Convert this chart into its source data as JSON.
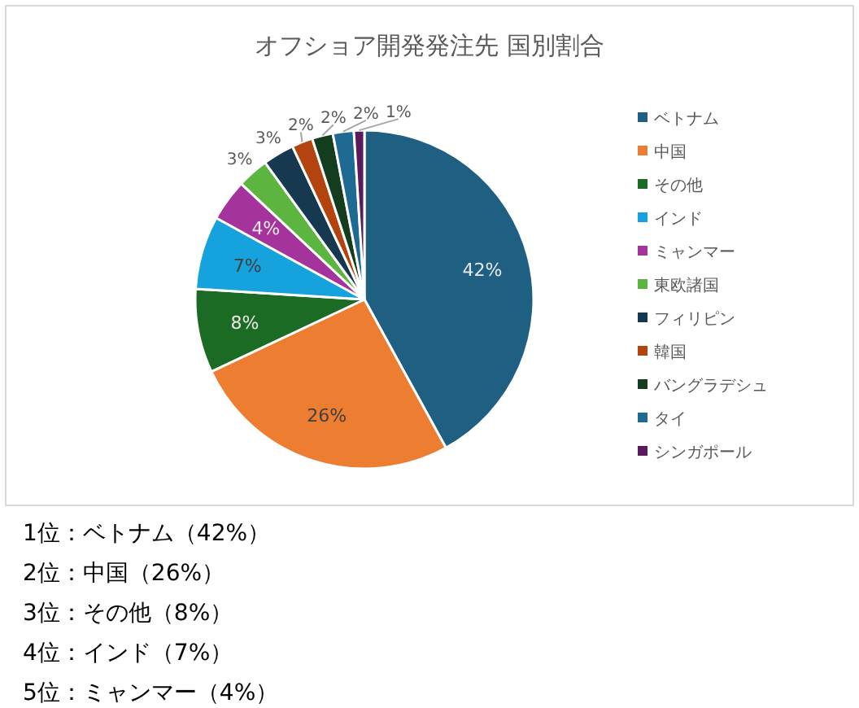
{
  "chart_data": {
    "type": "pie",
    "title": "オフショア開発発注先 国別割合",
    "categories": [
      "ベトナム",
      "中国",
      "その他",
      "インド",
      "ミャンマー",
      "東欧諸国",
      "フィリピン",
      "韓国",
      "バングラデシュ",
      "タイ",
      "シンガポール"
    ],
    "values": [
      42,
      26,
      8,
      7,
      4,
      3,
      3,
      2,
      2,
      2,
      1
    ],
    "value_labels": [
      "42%",
      "26%",
      "8%",
      "7%",
      "4%",
      "3%",
      "3%",
      "2%",
      "2%",
      "2%",
      "1%"
    ],
    "colors": [
      "#1f5f82",
      "#ed7d31",
      "#1b6b25",
      "#16a2dc",
      "#a4339b",
      "#5cb53e",
      "#16394f",
      "#b3440f",
      "#133d1e",
      "#1e6a92",
      "#5a1a5c"
    ],
    "legend": "right",
    "annotations": [
      "1位：ベトナム（42%）",
      "2位：中国（26%）",
      "3位：その他（8%）",
      "4位：インド（7%）",
      "5位：ミャンマー（4%）"
    ]
  }
}
